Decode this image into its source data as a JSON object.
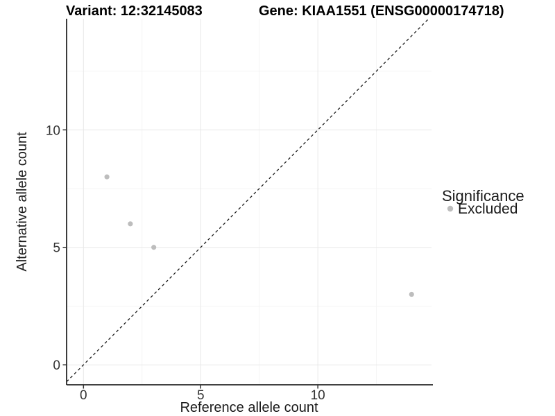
{
  "chart_data": {
    "type": "scatter",
    "titles": {
      "left": "Variant: 12:32145083",
      "right": "Gene: KIAA1551 (ENSG00000174718)"
    },
    "xlabel": "Reference allele count",
    "ylabel": "Alternative allele count",
    "xlim": [
      -0.72,
      14.85
    ],
    "ylim": [
      -0.85,
      14.73
    ],
    "x_major_ticks": [
      0,
      5,
      10
    ],
    "y_major_ticks": [
      0,
      5,
      10
    ],
    "x_minor_ticks": [
      2.5,
      7.5,
      12.5
    ],
    "y_minor_ticks": [
      2.5,
      7.5,
      12.5
    ],
    "grid": "major and minor gridlines, light gray, white panel",
    "abline": {
      "slope": 1,
      "intercept": 0,
      "linetype": "dashed"
    },
    "series": [
      {
        "name": "Excluded",
        "color": "#bdbdbd",
        "points": [
          [
            1,
            8
          ],
          [
            2,
            6
          ],
          [
            3,
            5
          ],
          [
            14,
            3
          ]
        ]
      }
    ],
    "legend": {
      "title": "Significance",
      "position": "right",
      "entries": [
        {
          "label": "Excluded",
          "color": "#bdbdbd",
          "marker": "circle"
        }
      ]
    }
  },
  "colors": {
    "background": "#ffffff",
    "grid_major": "#e8e8e8",
    "grid_minor": "#f4f4f4",
    "axis_line": "#262626",
    "tick_mark": "#333333",
    "tick_text": "#333333",
    "title_text": "#000000",
    "point": "#bdbdbd",
    "abline": "#1a1a1a"
  }
}
